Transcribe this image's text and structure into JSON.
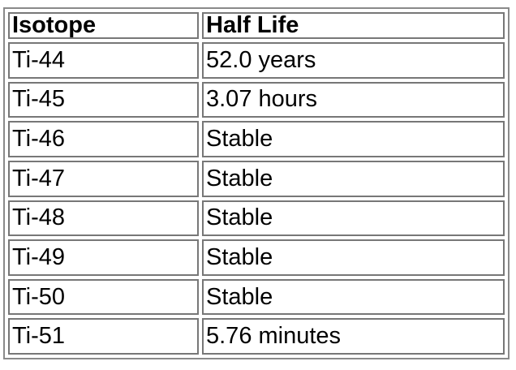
{
  "table": {
    "headers": [
      "Isotope",
      "Half Life"
    ],
    "rows": [
      [
        "Ti-44",
        "52.0 years"
      ],
      [
        "Ti-45",
        "3.07 hours"
      ],
      [
        "Ti-46",
        "Stable"
      ],
      [
        "Ti-47",
        "Stable"
      ],
      [
        "Ti-48",
        "Stable"
      ],
      [
        "Ti-49",
        "Stable"
      ],
      [
        "Ti-50",
        "Stable"
      ],
      [
        "Ti-51",
        "5.76 minutes"
      ]
    ]
  }
}
